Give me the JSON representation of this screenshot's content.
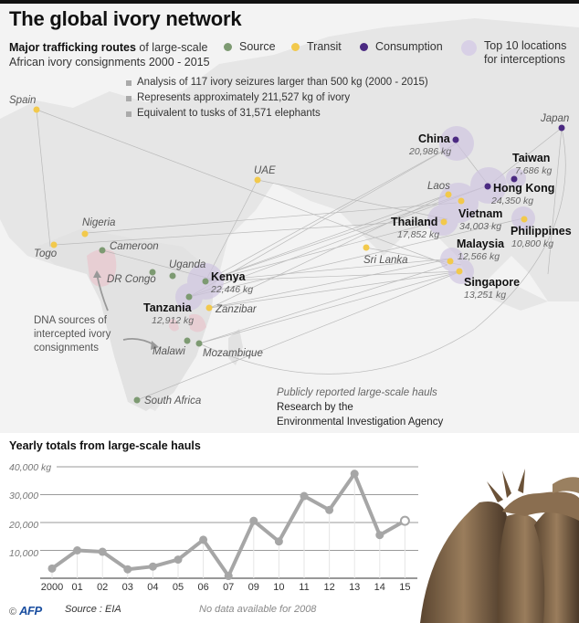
{
  "header": {
    "title": "The global ivory network",
    "subtitle_bold": "Major trafficking routes",
    "subtitle_rest": " of large-scale",
    "subtitle_line2": "African ivory consignments 2000 - 2015"
  },
  "legend": [
    {
      "label": "Source",
      "color": "#7d9a72"
    },
    {
      "label": "Transit",
      "color": "#f2c94c"
    },
    {
      "label": "Consumption",
      "color": "#4b2a82"
    },
    {
      "label_line1": "Top 10 locations",
      "label_line2": "for interceptions",
      "color": "#d8d0e6"
    }
  ],
  "facts": [
    "Analysis of 117 ivory seizures larger than 500 kg (2000 - 2015)",
    "Represents approximately 211,527 kg of ivory",
    "Equivalent to tusks of 31,571 elephants"
  ],
  "map": {
    "places": {
      "spain": "Spain",
      "uae": "UAE",
      "nigeria": "Nigeria",
      "togo": "Togo",
      "cameroon": "Cameroon",
      "drcongo": "DR Congo",
      "uganda": "Uganda",
      "zanzibar": "Zanzibar",
      "malawi": "Malawi",
      "mozambique": "Mozambique",
      "south_africa": "South Africa",
      "sri_lanka": "Sri Lanka",
      "laos": "Laos",
      "japan": "Japan"
    },
    "hubs": {
      "china": {
        "name": "China",
        "kg": "20,986 kg"
      },
      "taiwan": {
        "name": "Taiwan",
        "kg": "7,686 kg"
      },
      "hong_kong": {
        "name": "Hong Kong",
        "kg": "24,350 kg"
      },
      "vietnam": {
        "name": "Vietnam",
        "kg": "34,003 kg"
      },
      "thailand": {
        "name": "Thailand",
        "kg": "17,852 kg"
      },
      "philippines": {
        "name": "Philippines",
        "kg": "10,800 kg"
      },
      "malaysia": {
        "name": "Malaysia",
        "kg": "12,566 kg"
      },
      "singapore": {
        "name": "Singapore",
        "kg": "13,251 kg"
      },
      "kenya": {
        "name": "Kenya",
        "kg": "22,446 kg"
      },
      "tanzania": {
        "name": "Tanzania",
        "kg": "12,912 kg"
      }
    },
    "dna_note": [
      "DNA sources of",
      "intercepted ivory",
      "consignments"
    ],
    "credit_italic": "Publicly reported large-scale hauls",
    "credit_line1": "Research by the",
    "credit_line2": "Environmental Investigation Agency"
  },
  "chart_data": {
    "type": "line",
    "title": "Yearly totals from large-scale hauls",
    "xlabel": "",
    "ylabel": "kg",
    "categories": [
      "2000",
      "01",
      "02",
      "03",
      "04",
      "05",
      "06",
      "07",
      "09",
      "10",
      "11",
      "12",
      "13",
      "14",
      "15"
    ],
    "values": [
      3500,
      10000,
      9500,
      3200,
      4200,
      6700,
      13800,
      800,
      20600,
      13200,
      29500,
      24500,
      37500,
      15500,
      20600
    ],
    "ylim": [
      0,
      40000
    ],
    "yticks": [
      "10,000",
      "20,000",
      "30,000",
      "40,000 kg"
    ],
    "grid": true,
    "annotations": [
      "No data available for 2008",
      "2015 point shown as open circle"
    ]
  },
  "footer": {
    "copyright": "©",
    "brand": "AFP",
    "source": "Source : EIA",
    "note": "No data available for 2008"
  }
}
